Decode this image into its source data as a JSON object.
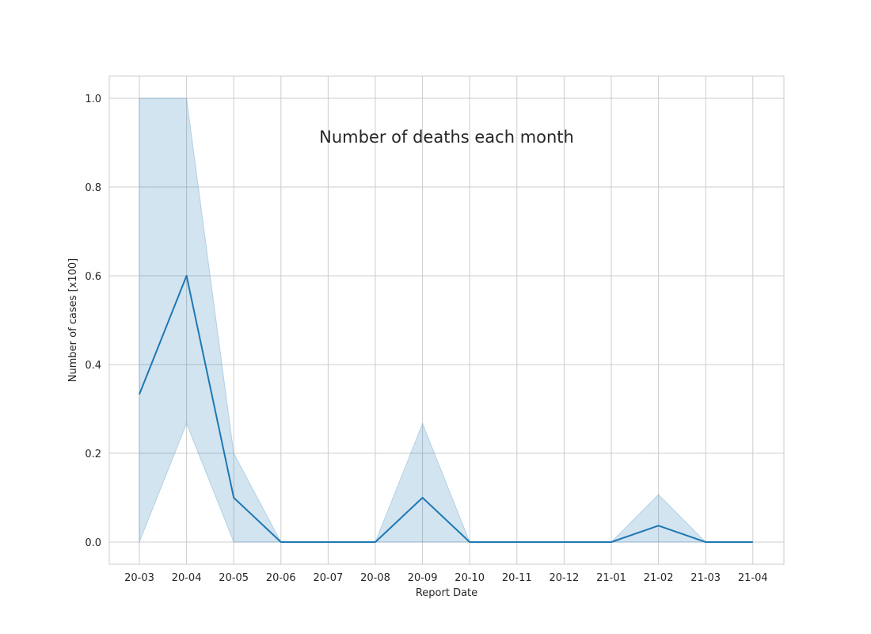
{
  "chart_data": {
    "type": "line",
    "title": "Number of deaths each month",
    "xlabel": "Report Date",
    "ylabel": "Number of cases [x100]",
    "categories": [
      "20-03",
      "20-04",
      "20-05",
      "20-06",
      "20-07",
      "20-08",
      "20-09",
      "20-10",
      "20-11",
      "20-12",
      "21-01",
      "21-02",
      "21-03",
      "21-04"
    ],
    "ylim": [
      -0.05,
      1.05
    ],
    "yticks": [
      "0.0",
      "0.2",
      "0.4",
      "0.6",
      "0.8",
      "1.0"
    ],
    "grid": true,
    "series": [
      {
        "values": [
          0.333,
          0.6,
          0.1,
          0.0,
          null,
          0.0,
          0.1,
          0.0,
          null,
          null,
          0.0,
          0.037,
          0.0,
          0.0
        ],
        "ci_lower": [
          0.0,
          0.267,
          0.0,
          0.0,
          null,
          0.0,
          0.0,
          0.0,
          null,
          null,
          0.0,
          0.0,
          0.0,
          0.0
        ],
        "ci_upper": [
          1.0,
          1.0,
          0.2,
          0.0,
          null,
          0.0,
          0.267,
          0.0,
          null,
          null,
          0.0,
          0.107,
          0.0,
          0.0
        ],
        "color": "#1f77b4"
      }
    ]
  }
}
